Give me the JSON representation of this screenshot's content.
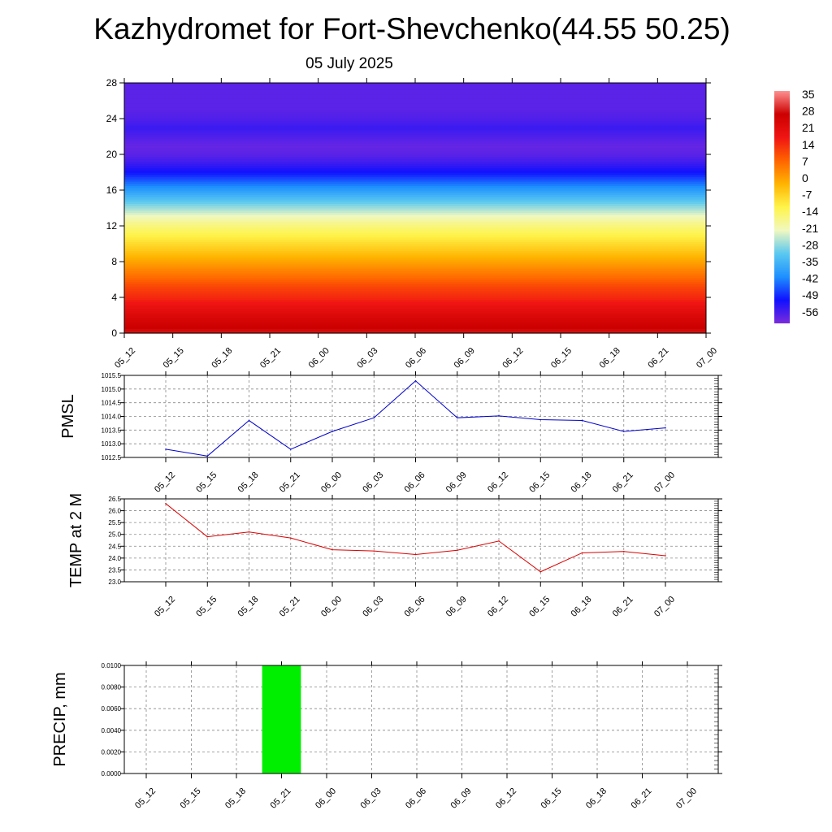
{
  "title": "Kazhydromet for Fort-Shevchenko(44.55 50.25)",
  "subtitle": "05 July 2025",
  "time_labels": [
    "05_12",
    "05_15",
    "05_18",
    "05_21",
    "06_00",
    "06_03",
    "06_06",
    "06_09",
    "06_12",
    "06_15",
    "06_18",
    "06_21",
    "07_00"
  ],
  "chart_data": [
    {
      "type": "heatmap",
      "name": "upper-air-temperature",
      "x": [
        "05_12",
        "05_15",
        "05_18",
        "05_21",
        "06_00",
        "06_03",
        "06_06",
        "06_09",
        "06_12",
        "06_15",
        "06_18",
        "06_21",
        "07_00"
      ],
      "y_ticks": [
        "0",
        "4",
        "8",
        "12",
        "16",
        "20",
        "24",
        "28"
      ],
      "ylim": [
        0,
        28
      ],
      "levels": [
        0,
        1,
        2,
        3,
        4,
        5,
        6,
        7,
        8,
        9,
        10,
        11,
        12,
        13,
        14,
        15,
        16,
        17,
        18,
        19,
        20,
        21,
        22,
        23,
        24,
        25,
        26,
        27,
        28
      ],
      "temperature_profile": [
        30,
        27,
        24,
        20,
        16,
        13,
        9,
        5,
        1,
        -3,
        -7,
        -11,
        -15,
        -20,
        -26,
        -32,
        -38,
        -44,
        -50,
        -54,
        -57,
        -58,
        -56,
        -54,
        -56,
        -57,
        -57,
        -57,
        -57
      ],
      "colorbar_labels": [
        "35",
        "28",
        "21",
        "14",
        "7",
        "0",
        "-7",
        "-14",
        "-21",
        "-28",
        "-35",
        "-42",
        "-49",
        "-56"
      ],
      "colorbar_range": [
        -60,
        38
      ],
      "color_stops": [
        "#7b2bdc",
        "#1010ff",
        "#1e90ff",
        "#5ac8f0",
        "#f0f8c0",
        "#fff44a",
        "#ffb400",
        "#ff6400",
        "#f01414",
        "#cc0000",
        "#ff9090"
      ],
      "grid": false
    },
    {
      "type": "line",
      "name": "pmsl",
      "ylabel": "PMSL",
      "x": [
        "05_12",
        "05_15",
        "05_18",
        "05_21",
        "06_00",
        "06_03",
        "06_06",
        "06_09",
        "06_12",
        "06_15",
        "06_18",
        "06_21",
        "07_00"
      ],
      "values": [
        1012.8,
        1012.55,
        1013.85,
        1012.8,
        1013.45,
        1013.95,
        1015.3,
        1013.95,
        1014.02,
        1013.88,
        1013.85,
        1013.45,
        1013.58
      ],
      "ylim": [
        1012.5,
        1015.5
      ],
      "y_ticks": [
        "1012.5",
        "1013.0",
        "1013.5",
        "1014.0",
        "1014.5",
        "1015.0",
        "1015.5"
      ],
      "color": "#0000cc",
      "grid": true
    },
    {
      "type": "line",
      "name": "temp-2m",
      "ylabel": "TEMP at 2 M",
      "x": [
        "05_12",
        "05_15",
        "05_18",
        "05_21",
        "06_00",
        "06_03",
        "06_06",
        "06_09",
        "06_12",
        "06_15",
        "06_18",
        "06_21",
        "07_00"
      ],
      "values": [
        26.3,
        24.9,
        25.1,
        24.85,
        24.35,
        24.3,
        24.15,
        24.33,
        24.72,
        23.42,
        24.22,
        24.28,
        24.1
      ],
      "ylim": [
        23.0,
        26.5
      ],
      "y_ticks": [
        "23.0",
        "23.5",
        "24.0",
        "24.5",
        "25.0",
        "25.5",
        "26.0",
        "26.5"
      ],
      "color": "#dd0000",
      "grid": true
    },
    {
      "type": "bar",
      "name": "precip",
      "ylabel": "PRECIP, mm",
      "x": [
        "05_12",
        "05_15",
        "05_18",
        "05_21",
        "06_00",
        "06_03",
        "06_06",
        "06_09",
        "06_12",
        "06_15",
        "06_18",
        "06_21",
        "07_00"
      ],
      "values": [
        0,
        0,
        0,
        0.01,
        0,
        0,
        0,
        0,
        0,
        0,
        0,
        0,
        0
      ],
      "ylim": [
        0,
        0.01
      ],
      "y_ticks": [
        "0.0000",
        "0.0020",
        "0.0040",
        "0.0060",
        "0.0080",
        "0.0100"
      ],
      "color": "#00ee00",
      "grid": true
    }
  ]
}
